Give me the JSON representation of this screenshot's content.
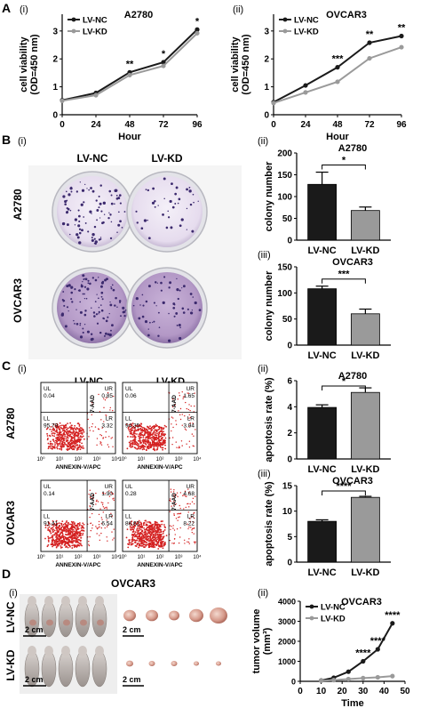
{
  "panels": {
    "A": "A",
    "B": "B",
    "C": "C",
    "D": "D",
    "i": "(i)",
    "ii": "(ii)",
    "iii": "(iii)"
  },
  "colors": {
    "nc": "#1a1a1a",
    "kd": "#9a9a9a",
    "dots": "#d42020",
    "dish_purple": "#b79ac8",
    "dish_light": "#ece6f2"
  },
  "chart_data": [
    {
      "id": "A-i",
      "type": "line",
      "title": "A2780",
      "x": [
        0,
        24,
        48,
        72,
        96
      ],
      "series": [
        {
          "name": "LV-NC",
          "values": [
            0.52,
            0.78,
            1.52,
            1.88,
            3.05
          ]
        },
        {
          "name": "LV-KD",
          "values": [
            0.5,
            0.7,
            1.42,
            1.75,
            2.92
          ]
        }
      ],
      "xlabel": "Hour",
      "ylabel": "cell viability\n(OD=450 nm)",
      "xticks": [
        0,
        24,
        48,
        72,
        96
      ],
      "yticks": [
        0,
        1,
        2,
        3
      ],
      "ylim": [
        0,
        3.6
      ],
      "sig": [
        {
          "x": 48,
          "label": "**"
        },
        {
          "x": 72,
          "label": "*"
        },
        {
          "x": 96,
          "label": "*"
        }
      ],
      "legend": "top-left"
    },
    {
      "id": "A-ii",
      "type": "line",
      "title": "OVCAR3",
      "x": [
        0,
        24,
        48,
        72,
        96
      ],
      "series": [
        {
          "name": "LV-NC",
          "values": [
            0.45,
            1.05,
            1.7,
            2.58,
            2.82
          ]
        },
        {
          "name": "LV-KD",
          "values": [
            0.42,
            0.8,
            1.18,
            2.02,
            2.42
          ]
        }
      ],
      "xlabel": "Hour",
      "ylabel": "cell viability\n(OD=450 nm)",
      "xticks": [
        0,
        24,
        48,
        72,
        96
      ],
      "yticks": [
        0,
        1,
        2,
        3
      ],
      "ylim": [
        0,
        3.6
      ],
      "sig": [
        {
          "x": 48,
          "label": "***"
        },
        {
          "x": 72,
          "label": "**"
        },
        {
          "x": 96,
          "label": "**"
        }
      ],
      "legend": "top-left"
    },
    {
      "id": "B-ii",
      "type": "bar",
      "title": "A2780",
      "categories": [
        "LV-NC",
        "LV-KD"
      ],
      "values": [
        128,
        68
      ],
      "errors": [
        28,
        8
      ],
      "ylabel": "colony number",
      "yticks": [
        0,
        50,
        100,
        150,
        200
      ],
      "ylim": [
        0,
        200
      ],
      "sig": "*"
    },
    {
      "id": "B-iii",
      "type": "bar",
      "title": "OVCAR3",
      "categories": [
        "LV-NC",
        "LV-KD"
      ],
      "values": [
        108,
        60
      ],
      "errors": [
        5,
        9
      ],
      "ylabel": "colony number",
      "yticks": [
        0,
        50,
        100,
        150
      ],
      "ylim": [
        0,
        150
      ],
      "sig": "***"
    },
    {
      "id": "C-ii",
      "type": "bar",
      "title": "A2780",
      "categories": [
        "LV-NC",
        "LV-KD"
      ],
      "values": [
        3.95,
        5.1
      ],
      "errors": [
        0.2,
        0.35
      ],
      "ylabel": "apoptosis rate (%)",
      "yticks": [
        0,
        2,
        4,
        6
      ],
      "ylim": [
        0,
        6
      ],
      "sig": "*"
    },
    {
      "id": "C-iii",
      "type": "bar",
      "title": "OVCAR3",
      "categories": [
        "LV-NC",
        "LV-KD"
      ],
      "values": [
        8.0,
        12.7
      ],
      "errors": [
        0.3,
        0.2
      ],
      "ylabel": "apoptosis rate (%)",
      "yticks": [
        0,
        5,
        10,
        15
      ],
      "ylim": [
        0,
        15
      ],
      "sig": "****"
    },
    {
      "id": "D-ii",
      "type": "line",
      "title": "OVCAR3",
      "x": [
        10,
        16,
        23,
        30,
        37,
        44
      ],
      "series": [
        {
          "name": "LV-NC",
          "values": [
            40,
            180,
            480,
            1000,
            1600,
            2900
          ]
        },
        {
          "name": "LV-KD",
          "values": [
            30,
            60,
            110,
            160,
            200,
            260
          ]
        }
      ],
      "xlabel": "Time",
      "ylabel": "tumor volume\n(mm³)",
      "xticks": [
        0,
        10,
        20,
        30,
        40,
        50
      ],
      "yticks": [
        0,
        1000,
        2000,
        3000,
        4000
      ],
      "xlim": [
        0,
        50
      ],
      "ylim": [
        0,
        4000
      ],
      "sig": [
        {
          "x": 30,
          "label": "****"
        },
        {
          "x": 37,
          "label": "****"
        },
        {
          "x": 44,
          "label": "****"
        }
      ],
      "legend": "top-left"
    }
  ],
  "flow": {
    "axis_x": "ANNEXIN-V/APC",
    "axis_y": "7-AAD",
    "col_labels": [
      "LV-NC",
      "LV-KD"
    ],
    "row_labels": [
      "A2780",
      "OVCAR3"
    ],
    "decades": [
      "10⁰",
      "10¹",
      "10²",
      "10³",
      "10⁴"
    ],
    "quad_names": [
      "UL",
      "UR",
      "LL",
      "LR"
    ],
    "plots": [
      {
        "UL": "0.04",
        "UR": "0.85",
        "LL": "95.79",
        "LR": "3.32"
      },
      {
        "UL": "0.06",
        "UR": "1.65",
        "LL": "94.35",
        "LR": "3.94"
      },
      {
        "UL": "0.14",
        "UR": "1.90",
        "LL": "91.41",
        "LR": "6.54"
      },
      {
        "UL": "0.28",
        "UR": "4.68",
        "LL": "86.82",
        "LR": "8.22"
      }
    ]
  },
  "colony": {
    "col_labels": [
      "LV-NC",
      "LV-KD"
    ],
    "row_labels": [
      "A2780",
      "OVCAR3"
    ]
  },
  "tumor": {
    "title": "OVCAR3",
    "row_labels": [
      "LV-NC",
      "LV-KD"
    ],
    "scale": "2 cm"
  }
}
